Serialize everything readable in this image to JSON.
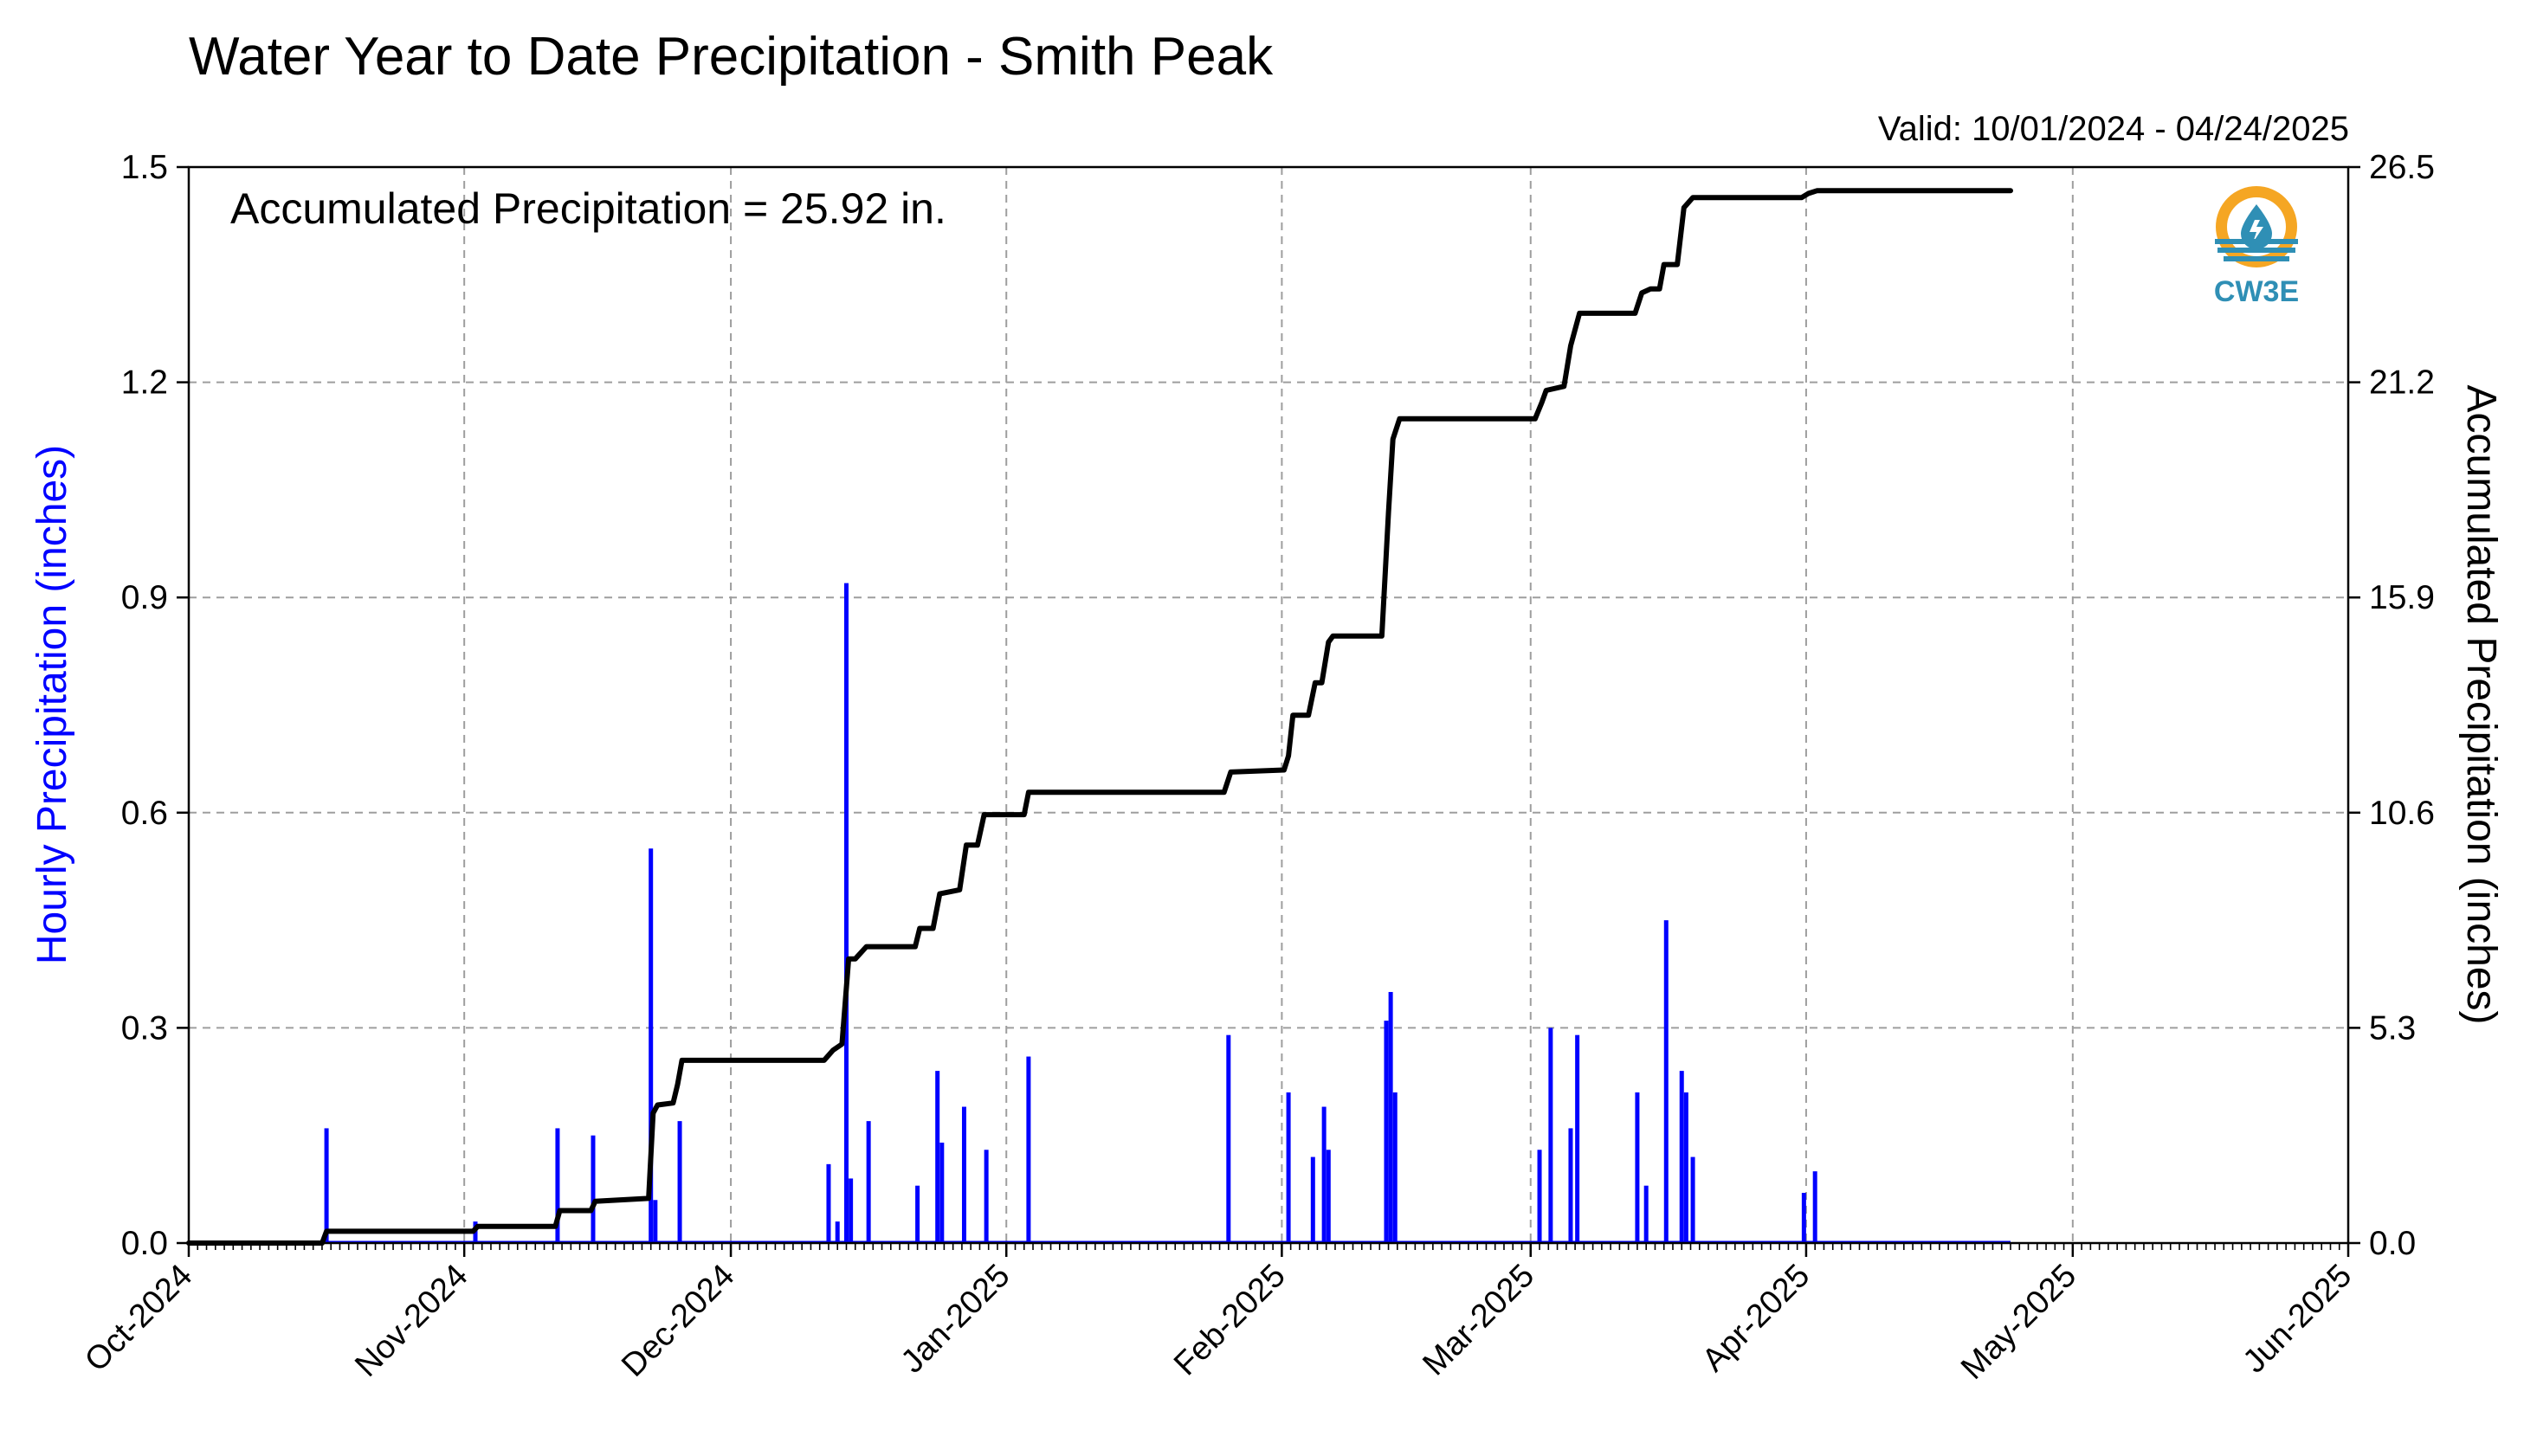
{
  "title": "Water Year to Date Precipitation - Smith Peak",
  "valid_text": "Valid: 10/01/2024 - 04/24/2025",
  "accumulated_text": "Accumulated Precipitation = 25.92 in.",
  "logo_text": "CW3E",
  "colors": {
    "hourly": "#0000ff",
    "accumulated": "#000000",
    "grid": "#9e9e9e",
    "logo_orange": "#f5a623",
    "logo_blue": "#2f8fb5"
  },
  "chart_data": {
    "type": "bar",
    "title": "Water Year to Date Precipitation - Smith Peak",
    "ylabel": "Hourly Precipitation (inches)",
    "ylabel_right": "Accumulated Precipitation (inches)",
    "ylim": [
      0,
      1.5
    ],
    "ylim_right": [
      0,
      26.5
    ],
    "xlim": [
      "2024-10-01",
      "2025-06-01"
    ],
    "grid": true,
    "y_ticks": [
      "0.0",
      "0.3",
      "0.6",
      "0.9",
      "1.2",
      "1.5"
    ],
    "y_right_ticks": [
      "0.0",
      "5.3",
      "10.6",
      "15.9",
      "21.2",
      "26.5"
    ],
    "x_ticks": [
      {
        "date": "2024-10-01",
        "label": "Oct-2024"
      },
      {
        "date": "2024-11-01",
        "label": "Nov-2024"
      },
      {
        "date": "2024-12-01",
        "label": "Dec-2024"
      },
      {
        "date": "2025-01-01",
        "label": "Jan-2025"
      },
      {
        "date": "2025-02-01",
        "label": "Feb-2025"
      },
      {
        "date": "2025-03-01",
        "label": "Mar-2025"
      },
      {
        "date": "2025-04-01",
        "label": "Apr-2025"
      },
      {
        "date": "2025-05-01",
        "label": "May-2025"
      },
      {
        "date": "2025-06-01",
        "label": "Jun-2025"
      }
    ],
    "series": [
      {
        "name": "Hourly Precipitation",
        "axis": "left",
        "points": [
          {
            "date": "2024-10-16T12:00",
            "value": 0.16
          },
          {
            "date": "2024-11-02T06:00",
            "value": 0.03
          },
          {
            "date": "2024-11-11T12:00",
            "value": 0.16
          },
          {
            "date": "2024-11-15T12:00",
            "value": 0.15
          },
          {
            "date": "2024-11-22T00:00",
            "value": 0.55
          },
          {
            "date": "2024-11-22T12:00",
            "value": 0.06
          },
          {
            "date": "2024-11-25T06:00",
            "value": 0.17
          },
          {
            "date": "2024-12-12T00:00",
            "value": 0.11
          },
          {
            "date": "2024-12-13T00:00",
            "value": 0.03
          },
          {
            "date": "2024-12-14T00:00",
            "value": 0.92
          },
          {
            "date": "2024-12-14T12:00",
            "value": 0.09
          },
          {
            "date": "2024-12-16T12:00",
            "value": 0.17
          },
          {
            "date": "2024-12-22T00:00",
            "value": 0.08
          },
          {
            "date": "2024-12-24T06:00",
            "value": 0.24
          },
          {
            "date": "2024-12-24T18:00",
            "value": 0.14
          },
          {
            "date": "2024-12-27T06:00",
            "value": 0.19
          },
          {
            "date": "2024-12-29T18:00",
            "value": 0.13
          },
          {
            "date": "2025-01-03T12:00",
            "value": 0.26
          },
          {
            "date": "2025-01-26T00:00",
            "value": 0.29
          },
          {
            "date": "2025-02-01T18:00",
            "value": 0.21
          },
          {
            "date": "2025-02-04T12:00",
            "value": 0.12
          },
          {
            "date": "2025-02-05T18:00",
            "value": 0.19
          },
          {
            "date": "2025-02-06T06:00",
            "value": 0.13
          },
          {
            "date": "2025-02-12T18:00",
            "value": 0.31
          },
          {
            "date": "2025-02-13T06:00",
            "value": 0.35
          },
          {
            "date": "2025-02-13T18:00",
            "value": 0.21
          },
          {
            "date": "2025-03-02T00:00",
            "value": 0.13
          },
          {
            "date": "2025-03-03T06:00",
            "value": 0.3
          },
          {
            "date": "2025-03-05T12:00",
            "value": 0.16
          },
          {
            "date": "2025-03-06T06:00",
            "value": 0.29
          },
          {
            "date": "2025-03-13T00:00",
            "value": 0.21
          },
          {
            "date": "2025-03-14T00:00",
            "value": 0.08
          },
          {
            "date": "2025-03-16T06:00",
            "value": 0.45
          },
          {
            "date": "2025-03-18T00:00",
            "value": 0.24
          },
          {
            "date": "2025-03-18T12:00",
            "value": 0.21
          },
          {
            "date": "2025-03-19T06:00",
            "value": 0.12
          },
          {
            "date": "2025-03-31T18:00",
            "value": 0.07
          },
          {
            "date": "2025-04-02T00:00",
            "value": 0.1
          }
        ]
      },
      {
        "name": "Accumulated Precipitation",
        "axis": "right",
        "points": [
          {
            "date": "2024-10-01T00:00",
            "value": 0.0
          },
          {
            "date": "2024-10-16T00:00",
            "value": 0.0
          },
          {
            "date": "2024-10-16T12:00",
            "value": 0.29
          },
          {
            "date": "2024-11-02T00:00",
            "value": 0.29
          },
          {
            "date": "2024-11-02T12:00",
            "value": 0.41
          },
          {
            "date": "2024-11-11T06:00",
            "value": 0.41
          },
          {
            "date": "2024-11-11T18:00",
            "value": 0.8
          },
          {
            "date": "2024-11-15T06:00",
            "value": 0.8
          },
          {
            "date": "2024-11-15T18:00",
            "value": 1.03
          },
          {
            "date": "2024-11-21T18:00",
            "value": 1.1
          },
          {
            "date": "2024-11-22T06:00",
            "value": 3.2
          },
          {
            "date": "2024-11-22T18:00",
            "value": 3.4
          },
          {
            "date": "2024-11-24T12:00",
            "value": 3.45
          },
          {
            "date": "2024-11-25T00:00",
            "value": 3.9
          },
          {
            "date": "2024-11-25T12:00",
            "value": 4.5
          },
          {
            "date": "2024-12-11T12:00",
            "value": 4.5
          },
          {
            "date": "2024-12-12T12:00",
            "value": 4.75
          },
          {
            "date": "2024-12-13T12:00",
            "value": 4.9
          },
          {
            "date": "2024-12-14T06:00",
            "value": 7.0
          },
          {
            "date": "2024-12-15T00:00",
            "value": 7.0
          },
          {
            "date": "2024-12-16T06:00",
            "value": 7.3
          },
          {
            "date": "2024-12-21T18:00",
            "value": 7.3
          },
          {
            "date": "2024-12-22T06:00",
            "value": 7.75
          },
          {
            "date": "2024-12-23T18:00",
            "value": 7.75
          },
          {
            "date": "2024-12-24T12:00",
            "value": 8.6
          },
          {
            "date": "2024-12-26T18:00",
            "value": 8.7
          },
          {
            "date": "2024-12-27T12:00",
            "value": 9.8
          },
          {
            "date": "2024-12-28T18:00",
            "value": 9.8
          },
          {
            "date": "2024-12-29T12:00",
            "value": 10.55
          },
          {
            "date": "2025-01-03T00:00",
            "value": 10.55
          },
          {
            "date": "2025-01-03T12:00",
            "value": 11.1
          },
          {
            "date": "2025-01-25T12:00",
            "value": 11.1
          },
          {
            "date": "2025-01-26T06:00",
            "value": 11.6
          },
          {
            "date": "2025-02-01T06:00",
            "value": 11.65
          },
          {
            "date": "2025-02-01T18:00",
            "value": 12.0
          },
          {
            "date": "2025-02-02T06:00",
            "value": 13.0
          },
          {
            "date": "2025-02-04T00:00",
            "value": 13.0
          },
          {
            "date": "2025-02-04T18:00",
            "value": 13.8
          },
          {
            "date": "2025-02-05T12:00",
            "value": 13.8
          },
          {
            "date": "2025-02-06T06:00",
            "value": 14.8
          },
          {
            "date": "2025-02-06T18:00",
            "value": 14.95
          },
          {
            "date": "2025-02-12T06:00",
            "value": 14.95
          },
          {
            "date": "2025-02-13T00:00",
            "value": 18.0
          },
          {
            "date": "2025-02-13T12:00",
            "value": 19.8
          },
          {
            "date": "2025-02-14T06:00",
            "value": 20.3
          },
          {
            "date": "2025-03-01T12:00",
            "value": 20.3
          },
          {
            "date": "2025-03-02T06:00",
            "value": 20.7
          },
          {
            "date": "2025-03-02T18:00",
            "value": 21.0
          },
          {
            "date": "2025-03-04T18:00",
            "value": 21.1
          },
          {
            "date": "2025-03-05T12:00",
            "value": 22.1
          },
          {
            "date": "2025-03-06T12:00",
            "value": 22.9
          },
          {
            "date": "2025-03-12T18:00",
            "value": 22.9
          },
          {
            "date": "2025-03-13T12:00",
            "value": 23.4
          },
          {
            "date": "2025-03-14T12:00",
            "value": 23.5
          },
          {
            "date": "2025-03-15T12:00",
            "value": 23.5
          },
          {
            "date": "2025-03-16T00:00",
            "value": 24.1
          },
          {
            "date": "2025-03-17T12:00",
            "value": 24.1
          },
          {
            "date": "2025-03-18T06:00",
            "value": 25.5
          },
          {
            "date": "2025-03-19T06:00",
            "value": 25.75
          },
          {
            "date": "2025-03-31T12:00",
            "value": 25.75
          },
          {
            "date": "2025-04-01T06:00",
            "value": 25.85
          },
          {
            "date": "2025-04-02T06:00",
            "value": 25.92
          },
          {
            "date": "2025-04-24T00:00",
            "value": 25.92
          }
        ]
      }
    ]
  }
}
